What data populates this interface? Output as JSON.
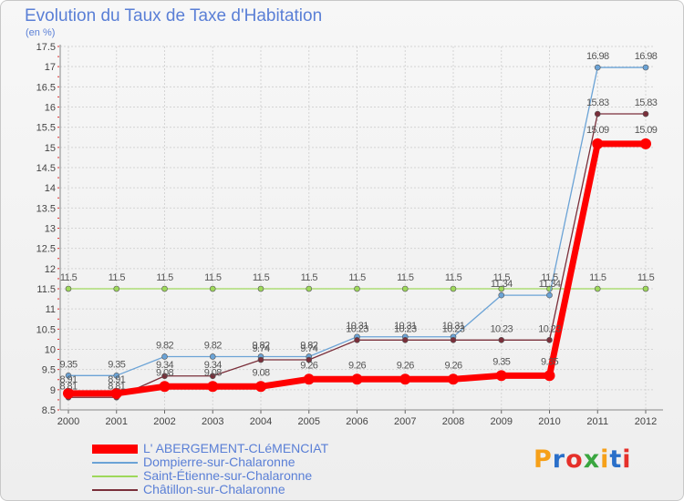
{
  "chart_data": {
    "type": "line",
    "title": "Evolution du Taux de Taxe d'Habitation",
    "unit_label": "(en %)",
    "xlabel": "",
    "ylabel": "",
    "categories": [
      "2000",
      "2001",
      "2002",
      "2003",
      "2004",
      "2005",
      "2006",
      "2007",
      "2008",
      "2009",
      "2010",
      "2011",
      "2012"
    ],
    "ylim": [
      8.5,
      17.5
    ],
    "yticks": [
      "8.5",
      "9",
      "9.5",
      "10",
      "10.5",
      "11",
      "11.5",
      "12",
      "12.5",
      "13",
      "13.5",
      "14",
      "14.5",
      "15",
      "15.5",
      "16",
      "16.5",
      "17",
      "17.5"
    ],
    "grid": true,
    "legend_position": "bottom-left",
    "series": [
      {
        "name": "L' ABERGEMENT-CLéMENCIAT",
        "color": "#ff0000",
        "values": [
          8.91,
          8.91,
          9.08,
          9.08,
          9.08,
          9.26,
          9.26,
          9.26,
          9.26,
          9.35,
          9.35,
          15.09,
          15.09
        ],
        "labels": [
          "8.91",
          "8.91",
          "9.08",
          "9.08",
          "9.08",
          "9.26",
          "9.26",
          "9.26",
          "9.26",
          "9.35",
          "9.35",
          "15.09",
          "15.09"
        ]
      },
      {
        "name": "Dompierre-sur-Chalaronne",
        "color": "#6ba3d6",
        "values": [
          9.35,
          9.35,
          9.82,
          9.82,
          9.82,
          9.82,
          10.31,
          10.31,
          10.31,
          11.34,
          11.34,
          16.98,
          16.98
        ],
        "labels": [
          "9.35",
          "9.35",
          "9.82",
          "9.82",
          "9.82",
          "9.82",
          "10.31",
          "10.31",
          "10.31",
          "11.34",
          "11.34",
          "16.98",
          "16.98"
        ]
      },
      {
        "name": "Saint-Étienne-sur-Chalaronne",
        "color": "#9ed85b",
        "values": [
          11.5,
          11.5,
          11.5,
          11.5,
          11.5,
          11.5,
          11.5,
          11.5,
          11.5,
          11.5,
          11.5,
          11.5,
          11.5
        ],
        "labels": [
          "11.5",
          "11.5",
          "11.5",
          "11.5",
          "11.5",
          "11.5",
          "11.5",
          "11.5",
          "11.5",
          "11.5",
          "11.5",
          "11.5",
          "11.5"
        ]
      },
      {
        "name": "Châtillon-sur-Chalaronne",
        "color": "#7a2f3a",
        "values": [
          8.81,
          8.81,
          9.34,
          9.34,
          9.74,
          9.74,
          10.23,
          10.23,
          10.23,
          10.23,
          10.23,
          15.83,
          15.83
        ],
        "labels": [
          "8.81",
          "8.81",
          "9.34",
          "9.34",
          "9.74",
          "9.74",
          "10.23",
          "10.23",
          "10.23",
          "10.23",
          "10.23",
          "15.83",
          "15.83"
        ]
      }
    ]
  },
  "logo": {
    "text": "Proxiti"
  }
}
